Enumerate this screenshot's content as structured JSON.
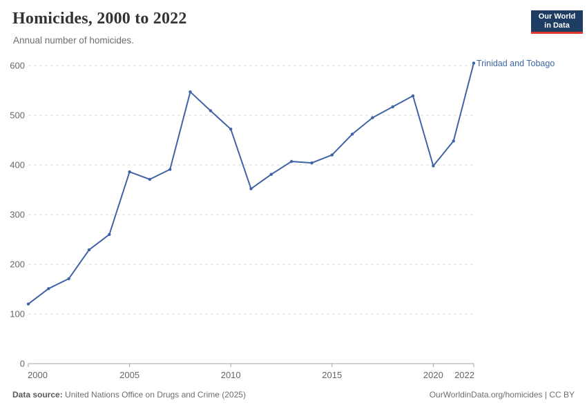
{
  "header": {
    "title": "Homicides, 2000 to 2022",
    "subtitle": "Annual number of homicides."
  },
  "logo": {
    "text": "Our World\nin Data",
    "bg_color": "#1d3d63",
    "accent_color": "#e0362c"
  },
  "chart_data": {
    "type": "line",
    "title": "Homicides, 2000 to 2022",
    "subtitle": "Annual number of homicides.",
    "xlabel": "",
    "ylabel": "",
    "x": [
      2000,
      2001,
      2002,
      2003,
      2004,
      2005,
      2006,
      2007,
      2008,
      2009,
      2010,
      2011,
      2012,
      2013,
      2014,
      2015,
      2016,
      2017,
      2018,
      2019,
      2020,
      2021,
      2022
    ],
    "series": [
      {
        "name": "Trinidad and Tobago",
        "color": "#4063a6",
        "values": [
          120,
          151,
          171,
          229,
          260,
          386,
          371,
          391,
          547,
          509,
          472,
          352,
          381,
          407,
          404,
          420,
          462,
          495,
          517,
          539,
          398,
          448,
          605
        ]
      }
    ],
    "x_ticks": [
      2000,
      2005,
      2010,
      2015,
      2020,
      2022
    ],
    "y_ticks": [
      0,
      100,
      200,
      300,
      400,
      500,
      600
    ],
    "xlim": [
      2000,
      2022
    ],
    "ylim": [
      0,
      620
    ],
    "grid": "horizontal-dashed",
    "grid_color": "#d8d8d8",
    "axis_color": "#a5a5a5",
    "tick_label_color": "#666666",
    "legend_position": "end-of-line-label",
    "end_label": "Trinidad and Tobago"
  },
  "footer": {
    "source_label": "Data source:",
    "source_text": " United Nations Office on Drugs and Crime (2025)",
    "credit": "OurWorldinData.org/homicides | CC BY"
  }
}
